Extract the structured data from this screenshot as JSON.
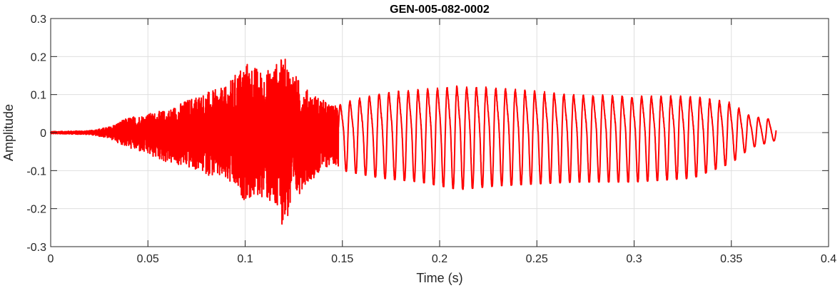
{
  "chart_data": {
    "type": "line",
    "title": "GEN-005-082-0002",
    "xlabel": "Time (s)",
    "ylabel": "Amplitude",
    "xlim": [
      0,
      0.4
    ],
    "ylim": [
      -0.3,
      0.3
    ],
    "x_ticks": [
      0,
      0.05,
      0.1,
      0.15,
      0.2,
      0.25,
      0.3,
      0.35,
      0.4
    ],
    "x_tick_labels": [
      "0",
      "0.05",
      "0.1",
      "0.15",
      "0.2",
      "0.25",
      "0.3",
      "0.35",
      "0.4"
    ],
    "y_ticks": [
      -0.3,
      -0.2,
      -0.1,
      0,
      0.1,
      0.2,
      0.3
    ],
    "y_tick_labels": [
      "-0.3",
      "-0.2",
      "-0.1",
      "0",
      "0.1",
      "0.2",
      "0.3"
    ],
    "grid": true,
    "series": [
      {
        "color": "#ff0000",
        "duration_s": 0.373,
        "envelope": {
          "t": [
            0,
            0.02,
            0.03,
            0.04,
            0.05,
            0.06,
            0.075,
            0.09,
            0.1,
            0.11,
            0.12,
            0.13,
            0.145,
            0.15,
            0.17,
            0.19,
            0.21,
            0.23,
            0.25,
            0.27,
            0.3,
            0.33,
            0.35,
            0.36,
            0.373
          ],
          "positive": [
            0.003,
            0.005,
            0.015,
            0.04,
            0.05,
            0.06,
            0.1,
            0.12,
            0.19,
            0.16,
            0.2,
            0.12,
            0.07,
            0.09,
            0.12,
            0.13,
            0.14,
            0.135,
            0.125,
            0.115,
            0.11,
            0.11,
            0.09,
            0.05,
            0.04
          ],
          "negative": [
            -0.003,
            -0.005,
            -0.015,
            -0.04,
            -0.06,
            -0.08,
            -0.1,
            -0.13,
            -0.18,
            -0.17,
            -0.25,
            -0.14,
            -0.08,
            -0.1,
            -0.12,
            -0.13,
            -0.15,
            -0.14,
            -0.135,
            -0.13,
            -0.13,
            -0.12,
            -0.08,
            -0.04,
            -0.02
          ]
        },
        "voiced_segment": {
          "start_s": 0.148,
          "end_s": 0.373,
          "pitch_hz": 200
        }
      }
    ]
  }
}
